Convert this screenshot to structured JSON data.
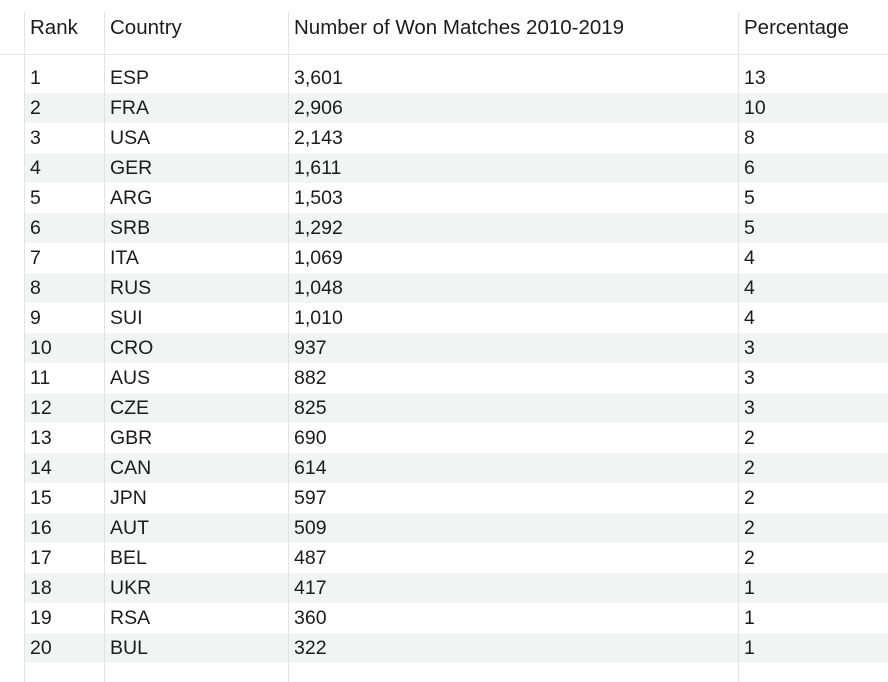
{
  "table": {
    "headers": {
      "rank": "Rank",
      "country": "Country",
      "won": "Number of Won Matches 2010-2019",
      "percentage": "Percentage"
    },
    "rows": [
      {
        "rank": "1",
        "country": "ESP",
        "won": "3,601",
        "percentage": "13"
      },
      {
        "rank": "2",
        "country": "FRA",
        "won": "2,906",
        "percentage": "10"
      },
      {
        "rank": "3",
        "country": "USA",
        "won": "2,143",
        "percentage": "8"
      },
      {
        "rank": "4",
        "country": "GER",
        "won": "1,611",
        "percentage": "6"
      },
      {
        "rank": "5",
        "country": "ARG",
        "won": "1,503",
        "percentage": "5"
      },
      {
        "rank": "6",
        "country": "SRB",
        "won": "1,292",
        "percentage": "5"
      },
      {
        "rank": "7",
        "country": "ITA",
        "won": "1,069",
        "percentage": "4"
      },
      {
        "rank": "8",
        "country": "RUS",
        "won": "1,048",
        "percentage": "4"
      },
      {
        "rank": "9",
        "country": "SUI",
        "won": "1,010",
        "percentage": "4"
      },
      {
        "rank": "10",
        "country": "CRO",
        "won": "937",
        "percentage": "3"
      },
      {
        "rank": "11",
        "country": "AUS",
        "won": "882",
        "percentage": "3"
      },
      {
        "rank": "12",
        "country": "CZE",
        "won": "825",
        "percentage": "3"
      },
      {
        "rank": "13",
        "country": "GBR",
        "won": "690",
        "percentage": "2"
      },
      {
        "rank": "14",
        "country": "CAN",
        "won": "614",
        "percentage": "2"
      },
      {
        "rank": "15",
        "country": "JPN",
        "won": "597",
        "percentage": "2"
      },
      {
        "rank": "16",
        "country": "AUT",
        "won": "509",
        "percentage": "2"
      },
      {
        "rank": "17",
        "country": "BEL",
        "won": "487",
        "percentage": "2"
      },
      {
        "rank": "18",
        "country": "UKR",
        "won": "417",
        "percentage": "1"
      },
      {
        "rank": "19",
        "country": "RSA",
        "won": "360",
        "percentage": "1"
      },
      {
        "rank": "20",
        "country": "BUL",
        "won": "322",
        "percentage": "1"
      }
    ]
  },
  "colors": {
    "alt_row": "#f2f3f3",
    "grid_line": "#e3e3e3",
    "text": "#1c1c1c"
  }
}
